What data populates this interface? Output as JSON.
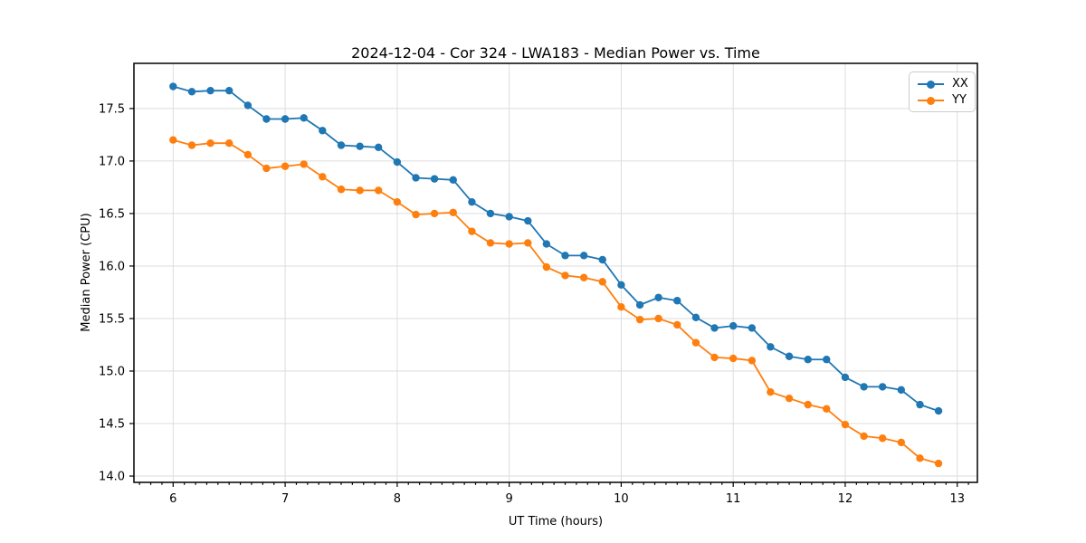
{
  "chart_data": {
    "type": "line",
    "title": "2024-12-04 - Cor 324 - LWA183 - Median Power vs. Time",
    "xlabel": "UT Time (hours)",
    "ylabel": "Median Power (CPU)",
    "xlim": [
      5.65,
      13.18
    ],
    "ylim": [
      13.94,
      17.93
    ],
    "x_major_ticks": [
      6,
      7,
      8,
      9,
      10,
      11,
      12,
      13
    ],
    "x_minor_tick_step": 0.1,
    "y_major_ticks": [
      14.0,
      14.5,
      15.0,
      15.5,
      16.0,
      16.5,
      17.0,
      17.5
    ],
    "grid": "major-both-light-gray",
    "legend_position": "upper-right",
    "marker": "circle",
    "x": [
      6.0,
      6.167,
      6.333,
      6.5,
      6.667,
      6.833,
      7.0,
      7.167,
      7.333,
      7.5,
      7.667,
      7.833,
      8.0,
      8.167,
      8.333,
      8.5,
      8.667,
      8.833,
      9.0,
      9.167,
      9.333,
      9.5,
      9.667,
      9.833,
      10.0,
      10.167,
      10.333,
      10.5,
      10.667,
      10.833,
      11.0,
      11.167,
      11.333,
      11.5,
      11.667,
      11.833,
      12.0,
      12.167,
      12.333,
      12.5,
      12.667,
      12.833
    ],
    "series": [
      {
        "name": "XX",
        "color": "#1f77b4",
        "values": [
          17.71,
          17.66,
          17.67,
          17.67,
          17.53,
          17.4,
          17.4,
          17.41,
          17.29,
          17.15,
          17.14,
          17.13,
          16.99,
          16.84,
          16.83,
          16.82,
          16.61,
          16.5,
          16.47,
          16.43,
          16.21,
          16.1,
          16.1,
          16.06,
          15.82,
          15.63,
          15.7,
          15.67,
          15.51,
          15.41,
          15.43,
          15.41,
          15.23,
          15.14,
          15.11,
          15.11,
          14.94,
          14.85,
          14.85,
          14.82,
          14.68,
          14.62
        ]
      },
      {
        "name": "YY",
        "color": "#ff7f0e",
        "values": [
          17.2,
          17.15,
          17.17,
          17.17,
          17.06,
          16.93,
          16.95,
          16.97,
          16.85,
          16.73,
          16.72,
          16.72,
          16.61,
          16.49,
          16.5,
          16.51,
          16.33,
          16.22,
          16.21,
          16.22,
          15.99,
          15.91,
          15.89,
          15.85,
          15.61,
          15.49,
          15.5,
          15.44,
          15.27,
          15.13,
          15.12,
          15.1,
          14.8,
          14.74,
          14.68,
          14.64,
          14.49,
          14.38,
          14.36,
          14.32,
          14.17,
          14.12
        ]
      }
    ],
    "axis_colors": {
      "spine": "#000000",
      "grid": "#dddddd",
      "tick": "#000000",
      "text": "#000000",
      "background": "#ffffff"
    }
  }
}
